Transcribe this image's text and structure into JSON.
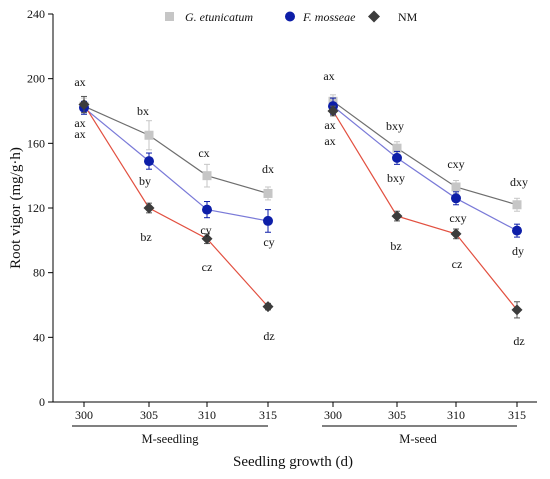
{
  "chart_data": {
    "type": "line",
    "xlabel": "Seedling growth (d)",
    "ylabel": "Root vigor  (mg/g·h)",
    "ylim": [
      0,
      240
    ],
    "yticks": [
      0,
      40,
      80,
      120,
      160,
      200,
      240
    ],
    "grid": false,
    "legend_position": "top",
    "panels": [
      {
        "name": "M-seedling",
        "x": [
          "300",
          "305",
          "310",
          "315"
        ]
      },
      {
        "name": "M-seed",
        "x": [
          "300",
          "305",
          "310",
          "315"
        ]
      }
    ],
    "series": [
      {
        "name": "G. etunicatum",
        "marker": "square",
        "marker_color": "#c6c6c6",
        "line_color": "#6e6e6e",
        "italic": true,
        "panels": [
          {
            "values": [
              183,
              165,
              140,
              129
            ],
            "errors": [
              5,
              9,
              7,
              4
            ],
            "labels": [
              "ax",
              "bx",
              "cx",
              "dx"
            ]
          },
          {
            "values": [
              186,
              157,
              133,
              122
            ],
            "errors": [
              4,
              4,
              4,
              4
            ],
            "labels": [
              "ax",
              "bxy",
              "cxy",
              "dxy"
            ]
          }
        ]
      },
      {
        "name": "F. mosseae",
        "marker": "circle",
        "marker_color": "#0d1ea8",
        "line_color": "#7a7ad8",
        "italic": true,
        "panels": [
          {
            "values": [
              182,
              149,
              119,
              112
            ],
            "errors": [
              4,
              5,
              5,
              7
            ],
            "labels": [
              "ax",
              "by",
              "cy",
              "cy"
            ]
          },
          {
            "values": [
              183,
              151,
              126,
              106
            ],
            "errors": [
              5,
              4,
              4,
              4
            ],
            "labels": [
              "ax",
              "bxy",
              "cxy",
              "dy"
            ]
          }
        ]
      },
      {
        "name": "NM",
        "marker": "diamond",
        "marker_color": "#3c3c3c",
        "line_color": "#e25040",
        "italic": false,
        "panels": [
          {
            "values": [
              184,
              120,
              101,
              59
            ],
            "errors": [
              5,
              3,
              3,
              2
            ],
            "labels": [
              "ax",
              "bz",
              "cz",
              "dz"
            ]
          },
          {
            "values": [
              180,
              115,
              104,
              57
            ],
            "errors": [
              3,
              3,
              3,
              5
            ],
            "labels": [
              "ax",
              "bz",
              "cz",
              "dz"
            ]
          }
        ]
      }
    ]
  }
}
